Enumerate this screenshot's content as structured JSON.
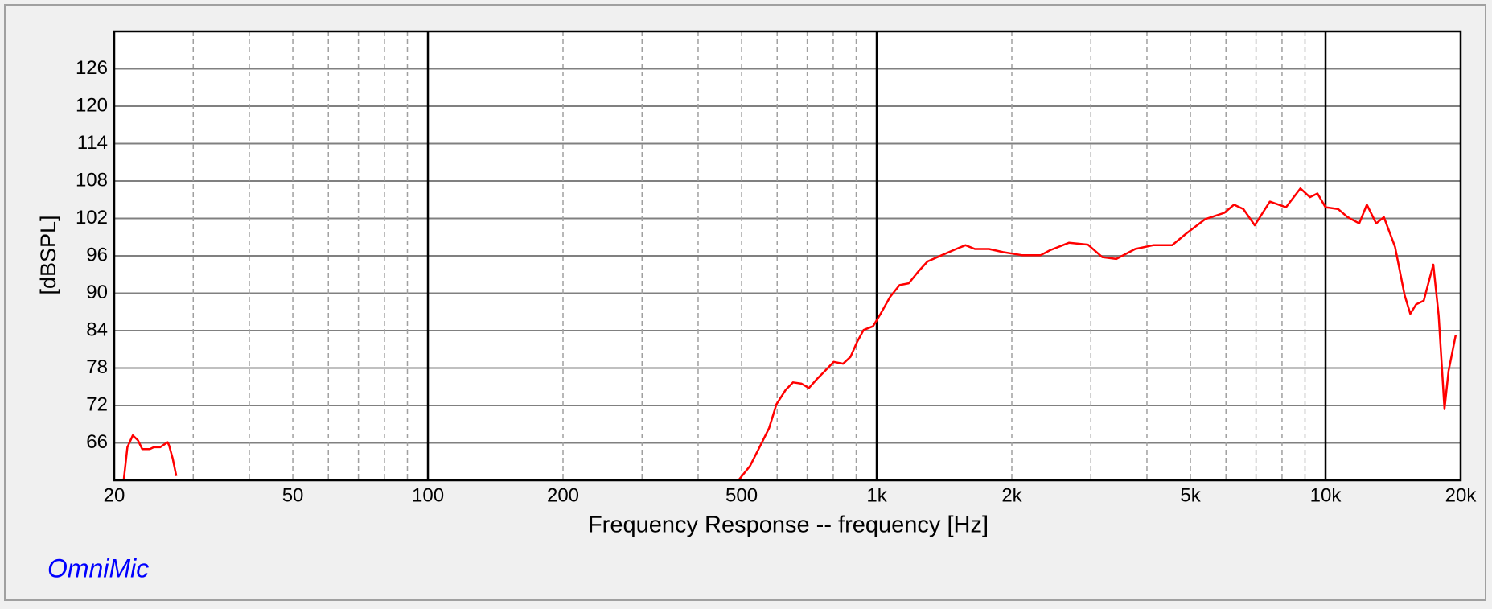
{
  "chart_data": {
    "type": "line",
    "xlabel": "Frequency Response -- frequency [Hz]",
    "ylabel": "[dBSPL]",
    "brand": "OmniMic",
    "xscale": "log",
    "xlim": [
      20,
      20000
    ],
    "ylim": [
      60,
      132
    ],
    "xticks": [
      20,
      50,
      {
        "value": 100,
        "label": "100"
      },
      200,
      500,
      {
        "value": 1000,
        "label": "1k"
      },
      {
        "value": 2000,
        "label": "2k"
      },
      {
        "value": 5000,
        "label": "5k"
      },
      {
        "value": 10000,
        "label": "10k"
      },
      {
        "value": 20000,
        "label": "20k"
      }
    ],
    "x_major_grid": [
      100,
      1000,
      10000
    ],
    "x_minor_grid": [
      30,
      40,
      50,
      60,
      70,
      80,
      90,
      200,
      300,
      400,
      500,
      600,
      700,
      800,
      900,
      2000,
      3000,
      4000,
      5000,
      6000,
      7000,
      8000,
      9000
    ],
    "yticks": [
      66,
      72,
      78,
      84,
      90,
      96,
      102,
      108,
      114,
      120,
      126
    ],
    "grid": true,
    "series": [
      {
        "name": "Frequency Response",
        "color": "#ff0000",
        "x": [
          21.0,
          21.4,
          22.0,
          22.6,
          23.1,
          24.0,
          24.5,
          25.3,
          26.3,
          26.5,
          27.0,
          27.5,
          100,
          492,
          522,
          548,
          576,
          598,
          627,
          651,
          680,
          706,
          737,
          766,
          802,
          842,
          874,
          903,
          935,
          981,
          1020,
          1071,
          1124,
          1179,
          1238,
          1298,
          1397,
          1503,
          1577,
          1655,
          1779,
          1911,
          2106,
          2319,
          2434,
          2683,
          2955,
          3180,
          3419,
          3766,
          4130,
          4552,
          4898,
          5397,
          5952,
          6252,
          6561,
          6954,
          7516,
          8166,
          8790,
          9230,
          9596,
          10000,
          10672,
          11200,
          11884,
          12360,
          12970,
          13490,
          14290,
          15000,
          15450,
          15910,
          16550,
          17380,
          17870,
          18410,
          18790,
          19500
        ],
        "values": [
          60,
          65.3,
          67.2,
          66.4,
          65.0,
          65.0,
          65.3,
          65.3,
          66.1,
          65.6,
          63.5,
          60.7,
          null,
          60,
          62.3,
          65.3,
          68.4,
          72.2,
          74.5,
          75.7,
          75.5,
          74.8,
          76.3,
          77.5,
          79.0,
          78.7,
          79.8,
          82.1,
          84.1,
          84.7,
          86.7,
          89.4,
          91.3,
          91.6,
          93.5,
          95.1,
          96.1,
          97.1,
          97.7,
          97.1,
          97.1,
          96.6,
          96.1,
          96.1,
          96.9,
          98.1,
          97.8,
          95.8,
          95.5,
          97.1,
          97.7,
          97.7,
          99.6,
          101.9,
          102.9,
          104.2,
          103.5,
          100.9,
          104.7,
          103.8,
          106.8,
          105.4,
          106.0,
          103.8,
          103.5,
          102.2,
          101.2,
          104.2,
          101.2,
          102.2,
          97.4,
          89.7,
          86.7,
          88.2,
          88.8,
          94.6,
          86.4,
          71.4,
          77.5,
          83.3
        ]
      }
    ]
  }
}
